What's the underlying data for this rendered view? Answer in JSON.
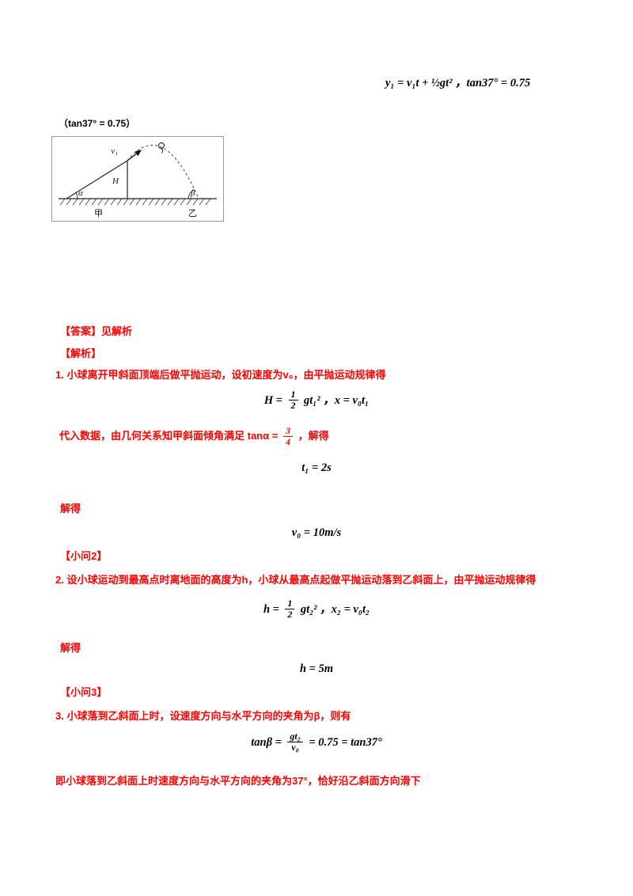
{
  "header": {
    "top_formula": "y₁ = v₁t + ½gt² ，tan37° = 0.75",
    "note": "（tan37° = 0.75）"
  },
  "diagram": {
    "labels": {
      "v1": "v₁",
      "H": "H",
      "alpha": "α",
      "beta": "β",
      "left_slope": "甲",
      "right_slope": "乙"
    }
  },
  "solution": {
    "answer": "【答案】见解析",
    "analysis": "【解析】",
    "part1": {
      "step1": "1. 小球离开甲斜面顶端后做平抛运动，设初速度为v₀，由平抛运动规律得",
      "f1_pre": "H =",
      "f1_num": "1",
      "f1_den": "2",
      "f1_post": "gt₁² ，x = v₀t₁",
      "step2_pre": "代入数据，由几何关系知甲斜面倾角满足 tanα =",
      "step2_num": "3",
      "step2_den": "4",
      "step2_post": "，解得",
      "f2": "t₁ = 2s",
      "solve": "解得",
      "f3": "v₀ = 10m/s"
    },
    "part2": {
      "header": "【小问2】",
      "step": "2. 设小球运动到最高点时离地面的高度为h，小球从最高点起做平抛运动落到乙斜面上，由平抛运动规律得",
      "f1_pre": "h =",
      "f1_num": "1",
      "f1_den": "2",
      "f1_post": "gt₂² ，x₂ = v₀t₂",
      "solve": "解得",
      "f2": "h = 5m"
    },
    "part3": {
      "header": "【小问3】",
      "step": "3. 小球落到乙斜面上时，设速度方向与水平方向的夹角为β，则有",
      "f1_pre": "tanβ =",
      "f1_num": "gt₂",
      "f1_den": "v₀",
      "f1_post": "= 0.75 = tan37°",
      "conclusion": "即小球落到乙斜面上时速度方向与水平方向的夹角为37°，恰好沿乙斜面方向滑下"
    }
  }
}
